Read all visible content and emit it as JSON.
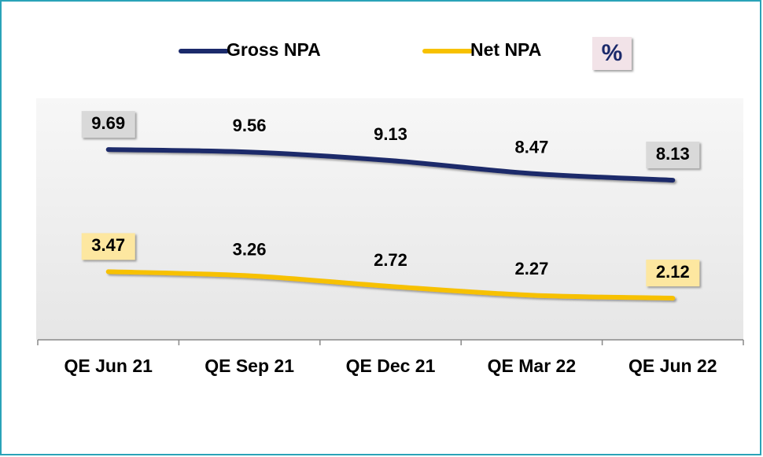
{
  "chart_data": {
    "type": "line",
    "categories": [
      "QE Jun 21",
      "QE Sep 21",
      "QE Dec 21",
      "QE Mar 22",
      "QE Jun 22"
    ],
    "series": [
      {
        "name": "Gross NPA",
        "color": "#1b2a6b",
        "values": [
          9.69,
          9.56,
          9.13,
          8.47,
          8.13
        ]
      },
      {
        "name": "Net NPA",
        "color": "#f7c100",
        "values": [
          3.47,
          3.26,
          2.72,
          2.27,
          2.12
        ]
      }
    ],
    "unit_label": "%",
    "ylim": [
      0,
      12.3
    ],
    "legend": "top"
  }
}
